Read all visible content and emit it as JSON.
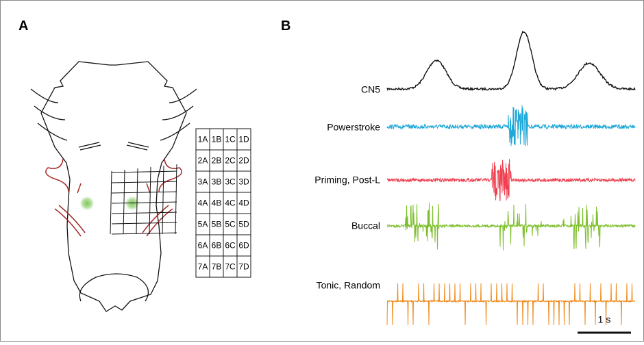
{
  "panels": {
    "a": "A",
    "b": "B"
  },
  "table": {
    "rows": [
      [
        "1A",
        "1B",
        "1C",
        "1D"
      ],
      [
        "2A",
        "2B",
        "2C",
        "2D"
      ],
      [
        "3A",
        "3B",
        "3C",
        "3D"
      ],
      [
        "4A",
        "4B",
        "4C",
        "4D"
      ],
      [
        "5A",
        "5B",
        "5C",
        "5D"
      ],
      [
        "6A",
        "6B",
        "6C",
        "6D"
      ],
      [
        "7A",
        "7B",
        "7C",
        "7D"
      ]
    ]
  },
  "traces": [
    "CN5",
    "Powerstroke",
    "Priming, Post-L",
    "Buccal",
    "Tonic, Random"
  ],
  "scale_bar": "1 s"
}
